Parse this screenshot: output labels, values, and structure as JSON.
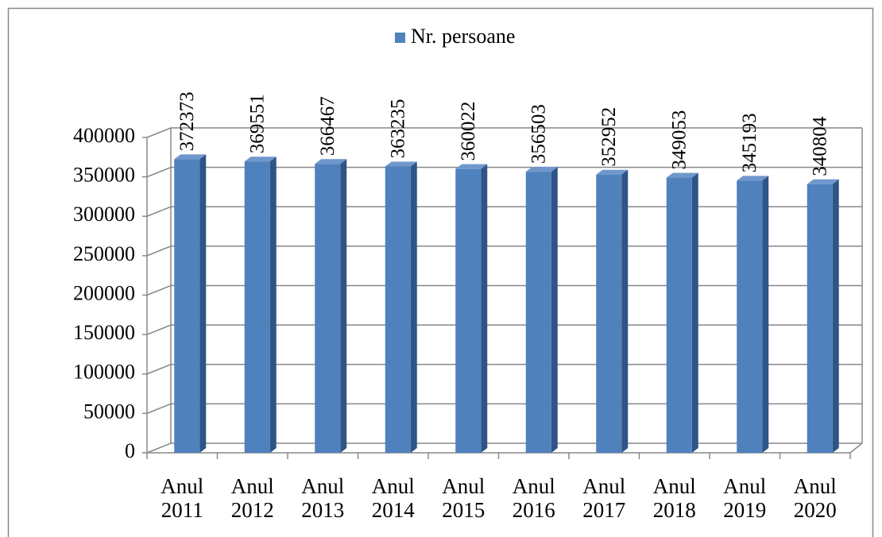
{
  "chart_data": {
    "type": "bar",
    "legend": "top",
    "series": [
      {
        "name": "Nr. persoane",
        "color": "#4f81bd",
        "values": [
          372373,
          369551,
          366467,
          363235,
          360022,
          356503,
          352952,
          349053,
          345193,
          340804
        ]
      }
    ],
    "categories": [
      "Anul 2011",
      "Anul 2012",
      "Anul 2013",
      "Anul 2014",
      "Anul 2015",
      "Anul 2016",
      "Anul 2017",
      "Anul 2018",
      "Anul 2019",
      "Anul 2020"
    ],
    "ylim": [
      0,
      400000
    ],
    "yticks": [
      0,
      50000,
      100000,
      150000,
      200000,
      250000,
      300000,
      350000,
      400000
    ],
    "grid": true
  }
}
